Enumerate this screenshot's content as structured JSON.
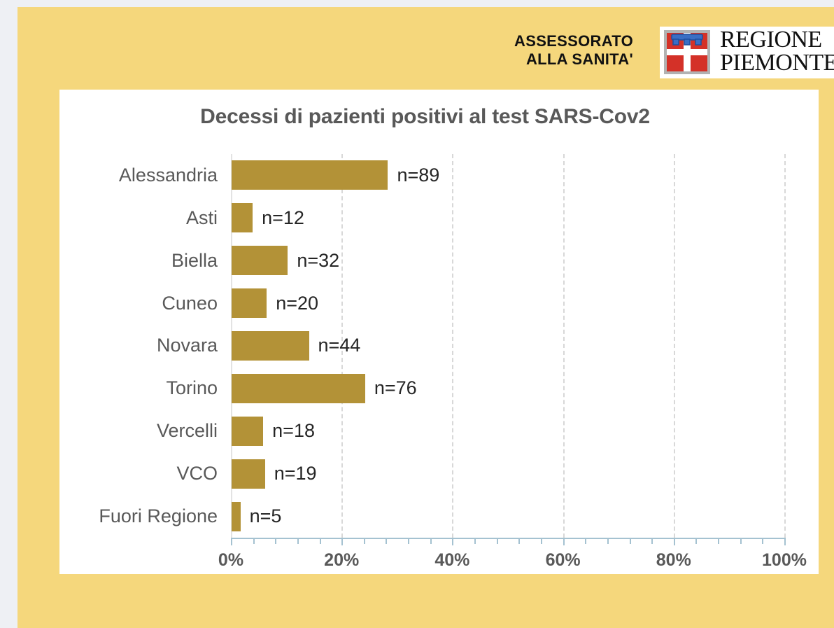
{
  "page": {
    "outer_background": "#eef0f4",
    "panel_background": "#f5d77c",
    "chart_background": "#ffffff"
  },
  "header": {
    "department_line1": "ASSESSORATO",
    "department_line2": "ALLA SANITA'",
    "logo": {
      "region_line1": "REGIONE",
      "region_line2": "PIEMONTE",
      "shield_gray": "#b2b2b2",
      "shield_white": "#ffffff",
      "shield_red": "#d43128",
      "shield_blue": "#3a6ec4"
    }
  },
  "chart_data": {
    "type": "bar",
    "orientation": "horizontal",
    "title": "Decessi di pazienti positivi al test SARS-Cov2",
    "categories": [
      "Alessandria",
      "Asti",
      "Biella",
      "Cuneo",
      "Novara",
      "Torino",
      "Vercelli",
      "VCO",
      "Fuori Regione"
    ],
    "counts": [
      89,
      12,
      32,
      20,
      44,
      76,
      18,
      19,
      5
    ],
    "values_pct": [
      28.25,
      3.81,
      10.16,
      6.35,
      13.97,
      24.13,
      5.71,
      6.03,
      1.59
    ],
    "bar_labels": [
      "n=89",
      "n=12",
      "n=32",
      "n=20",
      "n=44",
      "n=76",
      "n=18",
      "n=19",
      "n=5"
    ],
    "x_tick_labels": [
      "0%",
      "20%",
      "40%",
      "60%",
      "80%",
      "100%"
    ],
    "x_major_ticks_pct": [
      0,
      20,
      40,
      60,
      80,
      100
    ],
    "x_minor_tick_step_pct": 4,
    "xlim": [
      0,
      100
    ],
    "bar_color": "#b39237",
    "grid": "vertical dashed at major ticks",
    "legend": "none",
    "axis_color": "#a5c2d1",
    "text_color": "#595959"
  }
}
